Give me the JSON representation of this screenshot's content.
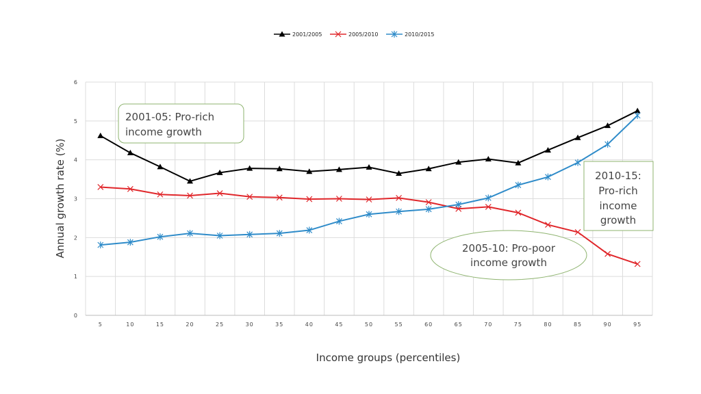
{
  "chart_data": {
    "type": "line",
    "title": "",
    "xlabel": "Income groups (percentiles)",
    "ylabel": "Annual growth rate (%)",
    "ylim": [
      0,
      6
    ],
    "yticks": [
      "0",
      "1",
      "2",
      "3",
      "4",
      "5",
      "6"
    ],
    "grid": true,
    "legend_position": "top",
    "categories": [
      "5",
      "10",
      "15",
      "20",
      "25",
      "30",
      "35",
      "40",
      "45",
      "50",
      "55",
      "60",
      "65",
      "70",
      "75",
      "80",
      "85",
      "90",
      "95"
    ],
    "series": [
      {
        "name": "2001/2005",
        "color": "#000000",
        "marker": "triangle",
        "values": [
          4.62,
          4.18,
          3.82,
          3.45,
          3.67,
          3.78,
          3.77,
          3.7,
          3.75,
          3.81,
          3.65,
          3.77,
          3.94,
          4.02,
          3.92,
          4.25,
          4.57,
          4.88,
          5.26
        ]
      },
      {
        "name": "2005/2010",
        "color": "#e0262a",
        "marker": "x",
        "values": [
          3.3,
          3.25,
          3.11,
          3.08,
          3.14,
          3.05,
          3.03,
          2.99,
          3.0,
          2.98,
          3.02,
          2.91,
          2.74,
          2.79,
          2.64,
          2.33,
          2.14,
          1.58,
          1.32
        ]
      },
      {
        "name": "2010/2015",
        "color": "#2e8bc9",
        "marker": "star",
        "values": [
          1.81,
          1.88,
          2.02,
          2.11,
          2.05,
          2.08,
          2.11,
          2.19,
          2.42,
          2.6,
          2.67,
          2.73,
          2.85,
          3.02,
          3.35,
          3.56,
          3.93,
          4.4,
          5.14
        ]
      }
    ],
    "annotations": [
      {
        "lines": [
          "2001-05: Pro-rich",
          "income growth"
        ]
      },
      {
        "lines": [
          "2010-15:",
          "Pro-rich",
          "income",
          "growth"
        ]
      },
      {
        "lines": [
          "2005-10: Pro-poor",
          "income growth"
        ]
      }
    ],
    "annotation_border_color": "#8db36e"
  }
}
